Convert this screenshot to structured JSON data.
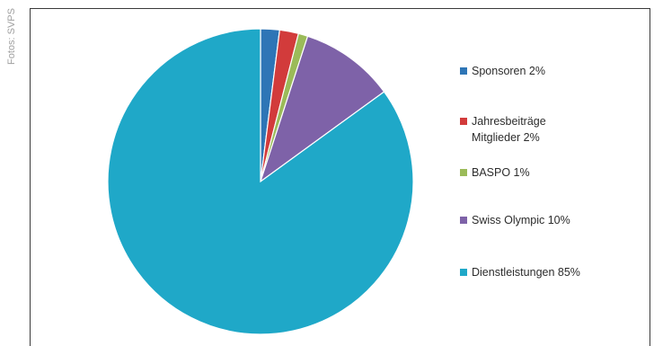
{
  "credit": "Fotos: SVPS",
  "chart_data": {
    "type": "pie",
    "categories": [
      "Sponsoren",
      "Jahresbeiträge Mitglieder",
      "BASPO",
      "Swiss Olympic",
      "Dienstleistungen"
    ],
    "values": [
      2,
      2,
      1,
      10,
      85
    ],
    "legend_placement": "right",
    "series": [
      {
        "label_lines": [
          "Sponsoren 2%"
        ],
        "value": 2,
        "color": "#2e75b6"
      },
      {
        "label_lines": [
          "Jahresbeiträge",
          "Mitglieder 2%"
        ],
        "value": 2,
        "color": "#d23b3b"
      },
      {
        "label_lines": [
          "BASPO 1%"
        ],
        "value": 1,
        "color": "#9bbb59"
      },
      {
        "label_lines": [
          "Swiss Olympic 10%"
        ],
        "value": 10,
        "color": "#7e62a8"
      },
      {
        "label_lines": [
          "Dienstleistungen 85%"
        ],
        "value": 85,
        "color": "#1fa8c8"
      }
    ]
  }
}
